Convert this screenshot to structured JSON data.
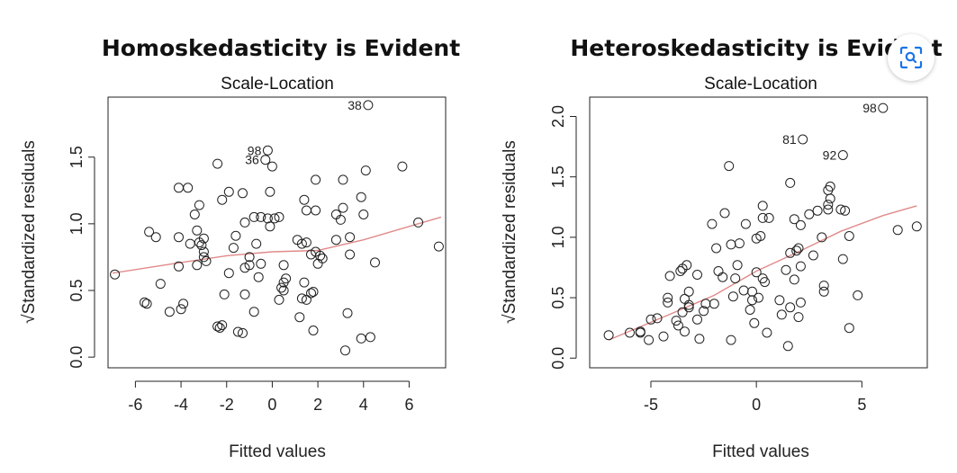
{
  "chart_data": [
    {
      "type": "scatter",
      "heading": "Homoskedasticity is Evident",
      "title": "Scale-Location",
      "xlabel": "Fitted values",
      "ylabel": "√Standardized residuals",
      "xlim": [
        -7.2,
        7.6
      ],
      "ylim": [
        -0.08,
        1.95
      ],
      "xticks": [
        -6,
        -4,
        -2,
        0,
        2,
        4,
        6
      ],
      "xtick_labels": [
        "-6",
        "-4",
        "-2",
        "0",
        "2",
        "4",
        "6"
      ],
      "yticks": [
        0.0,
        0.5,
        1.0,
        1.5
      ],
      "ytick_labels": [
        "0.0",
        "0.5",
        "1.0",
        "1.5"
      ],
      "points": [
        [
          -6.9,
          0.62
        ],
        [
          -5.6,
          0.41
        ],
        [
          -5.5,
          0.4
        ],
        [
          -5.4,
          0.94
        ],
        [
          -5.1,
          0.9
        ],
        [
          -4.9,
          0.55
        ],
        [
          -4.5,
          0.34
        ],
        [
          -4.1,
          0.9
        ],
        [
          -4.1,
          1.27
        ],
        [
          -4.1,
          0.68
        ],
        [
          -4.0,
          0.36
        ],
        [
          -3.9,
          0.4
        ],
        [
          -3.7,
          1.27
        ],
        [
          -3.6,
          0.85
        ],
        [
          -3.4,
          1.07
        ],
        [
          -3.3,
          0.95
        ],
        [
          -3.3,
          0.69
        ],
        [
          -3.2,
          1.14
        ],
        [
          -3.2,
          0.86
        ],
        [
          -3.1,
          0.84
        ],
        [
          -3.0,
          0.89
        ],
        [
          -3.0,
          0.79
        ],
        [
          -3.0,
          0.75
        ],
        [
          -2.9,
          0.72
        ],
        [
          -2.4,
          0.23
        ],
        [
          -2.4,
          1.45
        ],
        [
          -2.3,
          0.22
        ],
        [
          -2.2,
          1.18
        ],
        [
          -2.2,
          0.24
        ],
        [
          -2.1,
          0.47
        ],
        [
          -1.9,
          1.24
        ],
        [
          -1.9,
          0.63
        ],
        [
          -1.7,
          0.82
        ],
        [
          -1.6,
          0.91
        ],
        [
          -1.5,
          0.19
        ],
        [
          -1.3,
          0.18
        ],
        [
          -1.3,
          1.23
        ],
        [
          -1.2,
          1.01
        ],
        [
          -1.2,
          0.67
        ],
        [
          -1.2,
          0.47
        ],
        [
          -1.0,
          0.75
        ],
        [
          -1.0,
          0.69
        ],
        [
          -0.8,
          0.34
        ],
        [
          -0.8,
          1.05
        ],
        [
          -0.7,
          0.85
        ],
        [
          -0.6,
          0.6
        ],
        [
          -0.5,
          1.05
        ],
        [
          -0.5,
          0.7
        ],
        [
          -0.3,
          1.48
        ],
        [
          -0.2,
          1.55
        ],
        [
          -0.2,
          1.04
        ],
        [
          -0.1,
          1.24
        ],
        [
          -0.1,
          0.98
        ],
        [
          0.0,
          1.43
        ],
        [
          0.1,
          1.04
        ],
        [
          0.3,
          1.05
        ],
        [
          0.3,
          0.43
        ],
        [
          0.4,
          0.52
        ],
        [
          0.5,
          0.56
        ],
        [
          0.5,
          0.5
        ],
        [
          0.5,
          0.69
        ],
        [
          0.6,
          0.59
        ],
        [
          1.1,
          0.88
        ],
        [
          1.2,
          0.3
        ],
        [
          1.3,
          0.44
        ],
        [
          1.3,
          0.85
        ],
        [
          1.4,
          1.18
        ],
        [
          1.4,
          0.56
        ],
        [
          1.5,
          0.86
        ],
        [
          1.5,
          0.43
        ],
        [
          1.5,
          1.1
        ],
        [
          1.7,
          0.77
        ],
        [
          1.7,
          0.48
        ],
        [
          1.8,
          0.2
        ],
        [
          1.8,
          0.49
        ],
        [
          1.9,
          1.1
        ],
        [
          1.9,
          1.33
        ],
        [
          1.9,
          0.79
        ],
        [
          2.0,
          0.7
        ],
        [
          2.1,
          0.76
        ],
        [
          2.2,
          0.74
        ],
        [
          2.8,
          0.88
        ],
        [
          2.8,
          1.07
        ],
        [
          3.0,
          1.03
        ],
        [
          3.1,
          1.33
        ],
        [
          3.1,
          1.12
        ],
        [
          3.2,
          0.05
        ],
        [
          3.3,
          0.33
        ],
        [
          3.4,
          0.77
        ],
        [
          3.4,
          0.9
        ],
        [
          3.9,
          1.2
        ],
        [
          3.9,
          0.14
        ],
        [
          4.0,
          1.07
        ],
        [
          4.1,
          1.4
        ],
        [
          4.3,
          0.15
        ],
        [
          4.5,
          0.71
        ],
        [
          5.7,
          1.43
        ],
        [
          6.4,
          1.01
        ],
        [
          7.3,
          0.83
        ],
        [
          4.2,
          1.89
        ]
      ],
      "labeled_points": [
        {
          "label": "38",
          "x": 4.2,
          "y": 1.89
        },
        {
          "label": "98",
          "x": -0.2,
          "y": 1.55
        },
        {
          "label": "36",
          "x": -0.3,
          "y": 1.48
        }
      ],
      "trend": {
        "x": [
          -7.0,
          -4,
          -2,
          0,
          2,
          4,
          6,
          7.4
        ],
        "y": [
          0.63,
          0.71,
          0.76,
          0.79,
          0.8,
          0.88,
          0.98,
          1.05
        ]
      }
    },
    {
      "type": "scatter",
      "heading": "Heteroskedasticity is Evident",
      "title": "Scale-Location",
      "xlabel": "Fitted values",
      "ylabel": "√Standardized residuals",
      "xlim": [
        -7.9,
        8.1
      ],
      "ylim": [
        -0.08,
        2.16
      ],
      "xticks": [
        -5,
        0,
        5
      ],
      "xtick_labels": [
        "-5",
        "0",
        "5"
      ],
      "yticks": [
        0.0,
        0.5,
        1.0,
        1.5,
        2.0
      ],
      "ytick_labels": [
        "0.0",
        "0.5",
        "1.0",
        "1.5",
        "2.0"
      ],
      "points": [
        [
          -7.0,
          0.19
        ],
        [
          -6.0,
          0.21
        ],
        [
          -5.5,
          0.22
        ],
        [
          -5.5,
          0.21
        ],
        [
          -5.1,
          0.15
        ],
        [
          -5.0,
          0.32
        ],
        [
          -4.7,
          0.33
        ],
        [
          -4.4,
          0.18
        ],
        [
          -4.2,
          0.5
        ],
        [
          -4.2,
          0.46
        ],
        [
          -4.1,
          0.68
        ],
        [
          -3.8,
          0.31
        ],
        [
          -3.7,
          0.27
        ],
        [
          -3.6,
          0.72
        ],
        [
          -3.5,
          0.38
        ],
        [
          -3.5,
          0.74
        ],
        [
          -3.4,
          0.49
        ],
        [
          -3.4,
          0.22
        ],
        [
          -3.3,
          0.77
        ],
        [
          -3.2,
          0.55
        ],
        [
          -3.2,
          0.44
        ],
        [
          -3.2,
          0.42
        ],
        [
          -2.8,
          0.69
        ],
        [
          -2.8,
          0.32
        ],
        [
          -2.7,
          0.16
        ],
        [
          -2.5,
          0.39
        ],
        [
          -2.4,
          0.45
        ],
        [
          -2.1,
          1.11
        ],
        [
          -2.0,
          0.45
        ],
        [
          -1.9,
          0.91
        ],
        [
          -1.8,
          0.72
        ],
        [
          -1.6,
          0.67
        ],
        [
          -1.5,
          1.2
        ],
        [
          -1.3,
          1.59
        ],
        [
          -1.2,
          0.15
        ],
        [
          -1.2,
          0.94
        ],
        [
          -1.1,
          0.51
        ],
        [
          -1.0,
          0.66
        ],
        [
          -0.9,
          0.77
        ],
        [
          -0.8,
          0.95
        ],
        [
          -0.6,
          0.56
        ],
        [
          -0.5,
          1.11
        ],
        [
          -0.3,
          0.4
        ],
        [
          -0.2,
          0.55
        ],
        [
          -0.2,
          0.48
        ],
        [
          -0.1,
          0.29
        ],
        [
          0.0,
          0.99
        ],
        [
          0.0,
          0.71
        ],
        [
          0.1,
          0.5
        ],
        [
          0.2,
          1.01
        ],
        [
          0.3,
          1.26
        ],
        [
          0.3,
          0.66
        ],
        [
          0.3,
          1.16
        ],
        [
          0.4,
          0.63
        ],
        [
          0.5,
          0.21
        ],
        [
          0.6,
          1.16
        ],
        [
          1.1,
          0.48
        ],
        [
          1.2,
          0.36
        ],
        [
          1.4,
          0.73
        ],
        [
          1.5,
          0.1
        ],
        [
          1.6,
          0.42
        ],
        [
          1.6,
          0.87
        ],
        [
          1.6,
          1.45
        ],
        [
          1.8,
          1.15
        ],
        [
          1.8,
          0.65
        ],
        [
          1.9,
          0.89
        ],
        [
          2.0,
          0.34
        ],
        [
          2.0,
          0.91
        ],
        [
          2.1,
          1.1
        ],
        [
          2.1,
          0.76
        ],
        [
          2.1,
          0.46
        ],
        [
          2.5,
          1.19
        ],
        [
          2.7,
          0.85
        ],
        [
          2.9,
          1.22
        ],
        [
          3.1,
          1.0
        ],
        [
          3.2,
          0.55
        ],
        [
          3.2,
          0.6
        ],
        [
          3.4,
          1.27
        ],
        [
          3.4,
          1.23
        ],
        [
          3.4,
          1.39
        ],
        [
          3.5,
          1.42
        ],
        [
          3.5,
          1.32
        ],
        [
          4.0,
          1.23
        ],
        [
          4.1,
          0.82
        ],
        [
          4.2,
          1.22
        ],
        [
          4.4,
          1.01
        ],
        [
          4.4,
          0.25
        ],
        [
          4.8,
          0.52
        ],
        [
          6.7,
          1.06
        ],
        [
          7.6,
          1.09
        ],
        [
          2.2,
          1.81
        ],
        [
          4.1,
          1.68
        ],
        [
          6.0,
          2.07
        ]
      ],
      "labeled_points": [
        {
          "label": "98",
          "x": 6.0,
          "y": 2.07
        },
        {
          "label": "81",
          "x": 2.2,
          "y": 1.81
        },
        {
          "label": "92",
          "x": 4.1,
          "y": 1.68
        }
      ],
      "trend": {
        "x": [
          -7.0,
          -4,
          -2,
          0,
          2,
          4,
          6,
          7.6
        ],
        "y": [
          0.15,
          0.37,
          0.52,
          0.72,
          0.88,
          1.05,
          1.18,
          1.26
        ]
      }
    }
  ]
}
